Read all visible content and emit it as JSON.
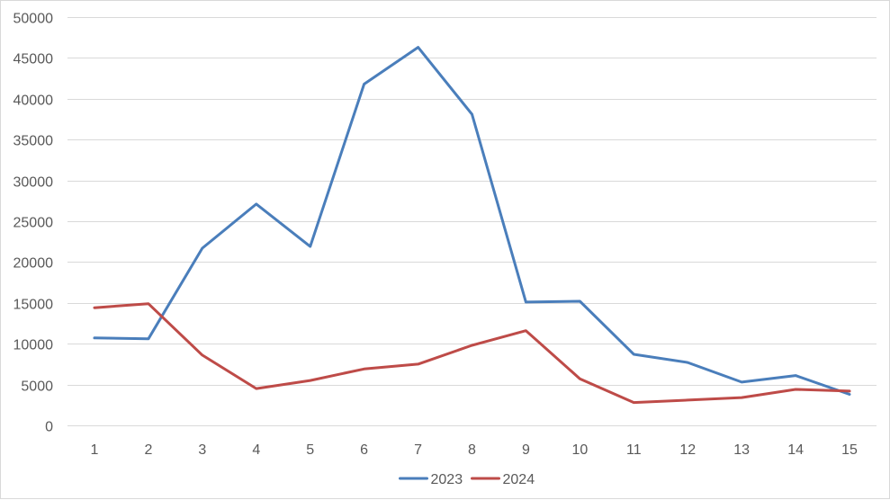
{
  "chart_data": {
    "type": "line",
    "title": "",
    "xlabel": "",
    "ylabel": "",
    "categories": [
      "1",
      "2",
      "3",
      "4",
      "5",
      "6",
      "7",
      "8",
      "9",
      "10",
      "11",
      "12",
      "13",
      "14",
      "15"
    ],
    "ylim": [
      0,
      50000
    ],
    "yticks": [
      0,
      5000,
      10000,
      15000,
      20000,
      25000,
      30000,
      35000,
      40000,
      45000,
      50000
    ],
    "grid": true,
    "legend_position": "bottom",
    "series": [
      {
        "name": "2023",
        "color": "#4a7ebb",
        "values": [
          10700,
          10600,
          21700,
          27100,
          21900,
          41800,
          46300,
          38100,
          15100,
          15200,
          8700,
          7700,
          5300,
          6100,
          3800
        ]
      },
      {
        "name": "2024",
        "color": "#be4b48",
        "values": [
          14400,
          14900,
          8600,
          4500,
          5500,
          6900,
          7500,
          9800,
          11600,
          5700,
          2800,
          3100,
          3400,
          4400,
          4200
        ]
      }
    ]
  }
}
